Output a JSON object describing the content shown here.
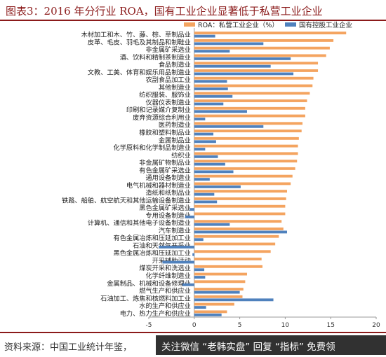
{
  "title": "图表3：2016 年分行业 ROA，国有工业企业显著低于私营工业企业",
  "source": "资料来源：中国工业统计年鉴，",
  "watermark": "关注微信 “老韩实盘” 回复 “指标” 免费领",
  "colors": {
    "private": "#f4a460",
    "state": "#4f81bd",
    "axis": "#999999",
    "title": "#8b1a1a"
  },
  "chart_data": {
    "type": "bar",
    "orientation": "horizontal",
    "xlim": [
      -5,
      20
    ],
    "xticks": [
      -5,
      0,
      5,
      10,
      15,
      20
    ],
    "legend": "top-right",
    "grid": false,
    "categories": [
      "木材加工和木、竹、藤、棕、草制品业",
      "皮革、毛皮、羽毛及其制品和制鞋业",
      "非金属矿采选业",
      "酒、饮料和精制茶制造业",
      "食品制造业",
      "文教、工美、体育和娱乐用品制造业",
      "农副食品加工业",
      "其他制造业",
      "纺织服装、服饰业",
      "仪器仪表制造业",
      "印刷和记录媒介复制业",
      "废弃资源综合利用业",
      "医药制造业",
      "橡胶和塑料制品业",
      "金属制品业",
      "化学原料和化学制品制造业",
      "纺织业",
      "非金属矿物制品业",
      "有色金属矿采选业",
      "通用设备制造业",
      "电气机械和器材制造业",
      "造纸和纸制品业",
      "铁路、船舶、航空航天和其他运输设备制造业",
      "黑色金属矿采选业",
      "专用设备制造业",
      "计算机、通信和其他电子设备制造业",
      "汽车制造业",
      "有色金属冶炼和压延加工业",
      "石油和天然气开采业",
      "黑色金属冶炼和压延加工业",
      "开采辅助活动",
      "煤炭开采和洗选业",
      "化学纤维制造业",
      "金属制品、机械和设备修理业",
      "燃气生产和供应业",
      "石油加工、炼焦和核燃料加工业",
      "水的生产和供应业",
      "电力、热力生产和供应业"
    ],
    "series": [
      {
        "name": "ROA：私营工业企业（%）",
        "values": [
          16.7,
          15.3,
          14.9,
          14.5,
          13.6,
          13.6,
          13.1,
          13.0,
          12.7,
          12.4,
          12.2,
          12.2,
          11.9,
          11.8,
          11.5,
          11.4,
          11.4,
          11.3,
          11.1,
          10.8,
          10.6,
          10.2,
          10.1,
          10.0,
          10.0,
          9.6,
          9.8,
          9.3,
          8.9,
          8.4,
          7.4,
          7.5,
          5.8,
          5.6,
          5.4,
          5.3,
          4.4,
          3.6
        ]
      },
      {
        "name": "国有控股工业企业",
        "values": [
          2.3,
          7.6,
          3.9,
          10.6,
          8.4,
          10.9,
          3.6,
          3.7,
          4.2,
          3.2,
          5.8,
          1.2,
          7.6,
          2.1,
          2.4,
          1.2,
          2.6,
          3.4,
          4.3,
          1.7,
          5.1,
          2.2,
          2.5,
          -0.5,
          -1.0,
          3.9,
          10.2,
          1.0,
          -3.9,
          -0.2,
          -3.5,
          1.1,
          1.2,
          -1.3,
          5.0,
          8.7,
          1.3,
          3.0
        ]
      }
    ]
  }
}
